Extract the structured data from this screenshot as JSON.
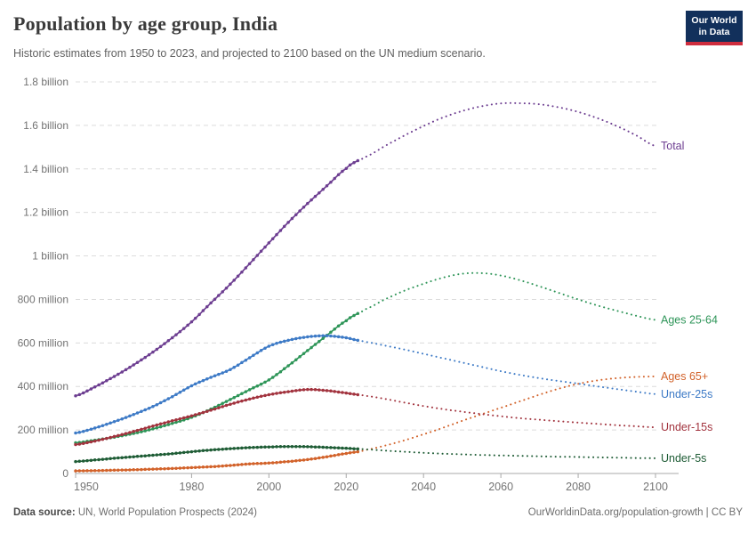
{
  "header": {
    "title": "Population by age group, India",
    "subtitle": "Historic estimates from 1950 to 2023, and projected to 2100 based on the UN medium scenario.",
    "logo": {
      "line1": "Our World",
      "line2": "in Data"
    }
  },
  "footer": {
    "source_label": "Data source:",
    "source_value": " UN, World Population Prospects (2024)",
    "credit": "OurWorldinData.org/population-growth | CC BY"
  },
  "chart_data": {
    "type": "line",
    "title": "Population by age group, India",
    "xlabel": "",
    "ylabel": "",
    "unit": "millions of people",
    "grid": "horizontal-dashed",
    "legend_position": "right-end-labels",
    "historic_end_year": 2023,
    "x_range": [
      1950,
      2100
    ],
    "y_range_millions": [
      0,
      1800
    ],
    "x_ticks": [
      1950,
      1980,
      2000,
      2020,
      2040,
      2060,
      2080,
      2100
    ],
    "y_ticks": [
      {
        "value": 0,
        "label": "0"
      },
      {
        "value": 200,
        "label": "200 million"
      },
      {
        "value": 400,
        "label": "400 million"
      },
      {
        "value": 600,
        "label": "600 million"
      },
      {
        "value": 800,
        "label": "800 million"
      },
      {
        "value": 1000,
        "label": "1 billion"
      },
      {
        "value": 1200,
        "label": "1.2 billion"
      },
      {
        "value": 1400,
        "label": "1.4 billion"
      },
      {
        "value": 1600,
        "label": "1.6 billion"
      },
      {
        "value": 1800,
        "label": "1.8 billion"
      }
    ],
    "x": [
      1950,
      1955,
      1960,
      1965,
      1970,
      1975,
      1980,
      1985,
      1990,
      1995,
      2000,
      2005,
      2010,
      2015,
      2020,
      2023,
      2025,
      2030,
      2035,
      2040,
      2045,
      2050,
      2055,
      2060,
      2065,
      2070,
      2075,
      2080,
      2085,
      2090,
      2095,
      2100
    ],
    "series": [
      {
        "name": "Total",
        "color": "#6d3e91",
        "values": [
          357,
          398,
          446,
          499,
          558,
          624,
          697,
          784,
          870,
          964,
          1060,
          1154,
          1241,
          1322,
          1402,
          1438,
          1455,
          1505,
          1553,
          1597,
          1636,
          1666,
          1688,
          1701,
          1702,
          1697,
          1683,
          1662,
          1633,
          1597,
          1554,
          1505
        ]
      },
      {
        "name": "Ages 25-64",
        "color": "#2e9558",
        "values": [
          141,
          153,
          167,
          184,
          205,
          230,
          258,
          296,
          340,
          385,
          430,
          495,
          565,
          635,
          702,
          735,
          755,
          800,
          840,
          872,
          900,
          918,
          921,
          910,
          888,
          860,
          830,
          800,
          772,
          748,
          725,
          706
        ]
      },
      {
        "name": "Ages 65+",
        "color": "#d2622a",
        "values": [
          12,
          13,
          15,
          17,
          20,
          23,
          27,
          31,
          37,
          44,
          48,
          55,
          64,
          77,
          92,
          100,
          108,
          128,
          152,
          180,
          210,
          242,
          272,
          302,
          332,
          362,
          390,
          412,
          428,
          438,
          444,
          446
        ]
      },
      {
        "name": "Under-25s",
        "color": "#3d7ac6",
        "values": [
          186,
          209,
          238,
          271,
          308,
          353,
          403,
          442,
          478,
          532,
          585,
          612,
          628,
          633,
          624,
          612,
          605,
          588,
          570,
          550,
          530,
          510,
          490,
          470,
          453,
          438,
          425,
          413,
          400,
          388,
          376,
          365
        ]
      },
      {
        "name": "Under-15s",
        "color": "#a2333e",
        "values": [
          133,
          149,
          170,
          193,
          218,
          242,
          265,
          291,
          318,
          342,
          362,
          376,
          386,
          381,
          370,
          362,
          357,
          343,
          326,
          310,
          296,
          284,
          273,
          263,
          254,
          247,
          240,
          234,
          228,
          222,
          217,
          212
        ]
      },
      {
        "name": "Under-5s",
        "color": "#1e5c35",
        "values": [
          55,
          62,
          70,
          77,
          84,
          91,
          100,
          108,
          114,
          119,
          122,
          124,
          123,
          120,
          116,
          113,
          111,
          105,
          100,
          95,
          91,
          88,
          85,
          83,
          81,
          79,
          77,
          76,
          74,
          73,
          71,
          70
        ]
      }
    ]
  }
}
